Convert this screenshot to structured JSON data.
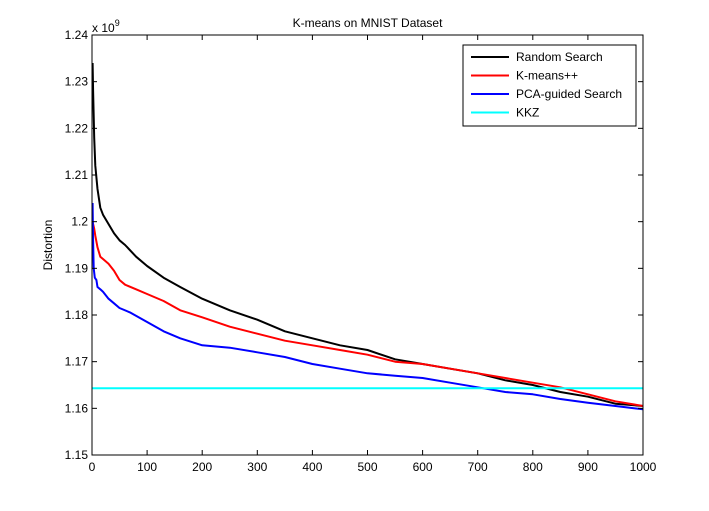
{
  "chart_data": {
    "type": "line",
    "title": "K-means on MNIST Dataset",
    "xlabel": "",
    "ylabel": "Distortion",
    "y_multiplier_base": "x 10",
    "y_multiplier_exp": "9",
    "xlim": [
      0,
      1000
    ],
    "ylim": [
      1.15,
      1.24
    ],
    "xticks": [
      0,
      100,
      200,
      300,
      400,
      500,
      600,
      700,
      800,
      900,
      1000
    ],
    "yticks": [
      1.15,
      1.16,
      1.17,
      1.18,
      1.19,
      1.2,
      1.21,
      1.22,
      1.23,
      1.24
    ],
    "ytick_labels": [
      "1.15",
      "1.16",
      "1.17",
      "1.18",
      "1.19",
      "1.2",
      "1.21",
      "1.22",
      "1.23",
      "1.24"
    ],
    "grid": false,
    "legend_position": "top-right",
    "series": [
      {
        "name": "Random Search",
        "color": "#000000",
        "x": [
          1,
          2,
          4,
          6,
          10,
          15,
          20,
          30,
          40,
          50,
          60,
          80,
          100,
          130,
          160,
          200,
          250,
          300,
          350,
          400,
          450,
          500,
          550,
          600,
          650,
          700,
          750,
          800,
          850,
          900,
          950,
          1000
        ],
        "y": [
          1.234,
          1.228,
          1.218,
          1.212,
          1.207,
          1.203,
          1.2015,
          1.1995,
          1.1975,
          1.196,
          1.195,
          1.1925,
          1.1905,
          1.188,
          1.186,
          1.1835,
          1.181,
          1.179,
          1.1765,
          1.175,
          1.1735,
          1.1725,
          1.1705,
          1.1695,
          1.1685,
          1.1675,
          1.166,
          1.165,
          1.1635,
          1.1625,
          1.161,
          1.1605
        ]
      },
      {
        "name": "K-means++",
        "color": "#ff0000",
        "x": [
          1,
          2,
          4,
          6,
          10,
          15,
          20,
          30,
          40,
          50,
          60,
          80,
          100,
          130,
          160,
          200,
          250,
          300,
          350,
          400,
          450,
          500,
          550,
          600,
          650,
          700,
          750,
          800,
          850,
          900,
          950,
          1000
        ],
        "y": [
          1.2,
          1.1995,
          1.1985,
          1.197,
          1.1945,
          1.1925,
          1.192,
          1.191,
          1.1895,
          1.1875,
          1.1865,
          1.1855,
          1.1845,
          1.183,
          1.181,
          1.1795,
          1.1775,
          1.176,
          1.1745,
          1.1735,
          1.1725,
          1.1715,
          1.17,
          1.1695,
          1.1685,
          1.1675,
          1.1665,
          1.1655,
          1.1645,
          1.163,
          1.1615,
          1.1605
        ]
      },
      {
        "name": "PCA-guided Search",
        "color": "#0000ff",
        "x": [
          1,
          2,
          3,
          5,
          8,
          10,
          15,
          20,
          30,
          40,
          50,
          70,
          100,
          130,
          160,
          200,
          250,
          300,
          350,
          400,
          450,
          500,
          550,
          600,
          650,
          700,
          750,
          800,
          850,
          900,
          950,
          1000
        ],
        "y": [
          1.204,
          1.196,
          1.19,
          1.188,
          1.1875,
          1.186,
          1.1855,
          1.185,
          1.1835,
          1.1825,
          1.1815,
          1.1805,
          1.1785,
          1.1765,
          1.175,
          1.1735,
          1.173,
          1.172,
          1.171,
          1.1695,
          1.1685,
          1.1675,
          1.167,
          1.1665,
          1.1655,
          1.1645,
          1.1635,
          1.163,
          1.162,
          1.1612,
          1.1605,
          1.1598
        ]
      },
      {
        "name": "KKZ",
        "color": "#00ffff",
        "x": [
          0,
          1000
        ],
        "y": [
          1.1643,
          1.1643
        ]
      }
    ]
  }
}
